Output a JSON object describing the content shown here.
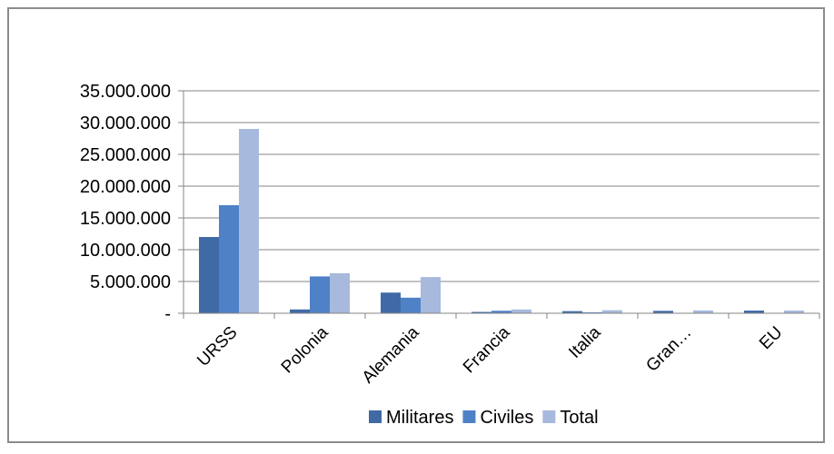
{
  "chart_data": {
    "type": "bar",
    "categories": [
      "URSS",
      "Polonia",
      "Alemania",
      "Francia",
      "Italia",
      "Gran…",
      "EU"
    ],
    "series": [
      {
        "name": "Militares",
        "color": "#3f6aa6",
        "values": [
          12000000,
          600000,
          3250000,
          210000,
          330000,
          380000,
          420000
        ]
      },
      {
        "name": "Civiles",
        "color": "#4f81c7",
        "values": [
          17000000,
          5800000,
          2450000,
          390000,
          150000,
          70000,
          20000
        ]
      },
      {
        "name": "Total",
        "color": "#a7b9dc",
        "values": [
          29000000,
          6300000,
          5700000,
          600000,
          480000,
          450000,
          430000
        ]
      }
    ],
    "y_ticks": [
      {
        "value": 0,
        "label": "-"
      },
      {
        "value": 5000000,
        "label": "5.000.000"
      },
      {
        "value": 10000000,
        "label": "10.000.000"
      },
      {
        "value": 15000000,
        "label": "15.000.000"
      },
      {
        "value": 20000000,
        "label": "20.000.000"
      },
      {
        "value": 25000000,
        "label": "25.000.000"
      },
      {
        "value": 30000000,
        "label": "30.000.000"
      },
      {
        "value": 35000000,
        "label": "35.000.000"
      }
    ],
    "ylim": [
      0,
      35000000
    ],
    "grid": true,
    "legend_position": "bottom",
    "axis_color": "#868686",
    "grid_color": "#868686"
  }
}
